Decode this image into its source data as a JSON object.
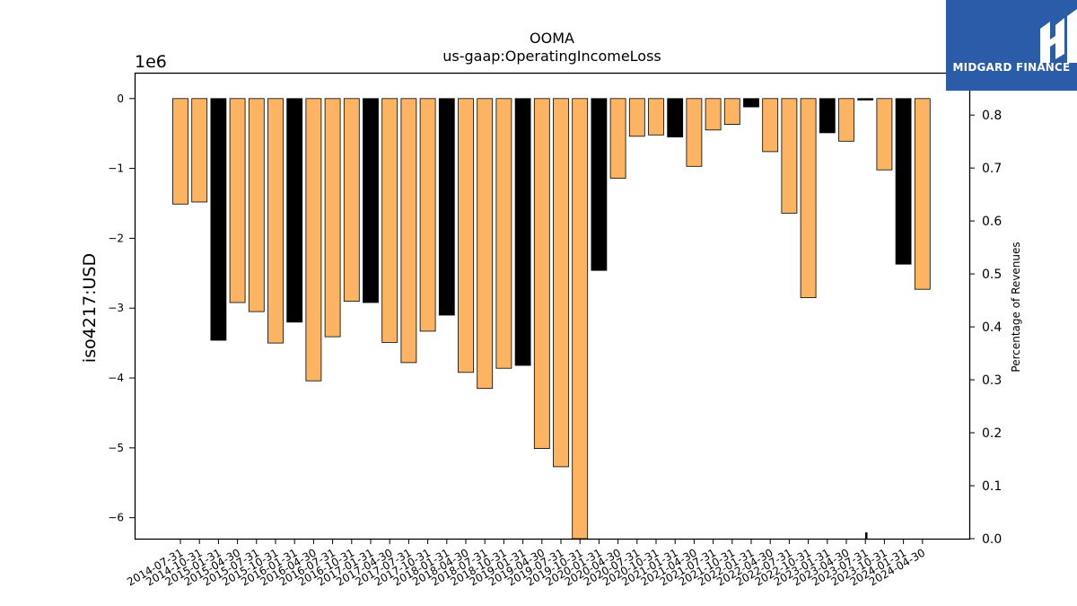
{
  "chart_data": {
    "type": "bar",
    "title": "OOMA",
    "subtitle": "us-gaap:OperatingIncomeLoss",
    "ylabel": "iso4217:USD",
    "y2label": "Percentage of Revenues",
    "offset_text": "1e6",
    "ylim": [
      -6.3,
      0.37
    ],
    "y2lim": [
      0.0,
      0.88
    ],
    "y_ticks": [
      0,
      -1,
      -2,
      -3,
      -4,
      -5,
      -6
    ],
    "y_tick_labels": [
      "0",
      "−1",
      "−2",
      "−3",
      "−4",
      "−5",
      "−6"
    ],
    "y2_ticks": [
      0.0,
      0.1,
      0.2,
      0.3,
      0.4,
      0.5,
      0.6,
      0.7,
      0.8
    ],
    "y2_tick_labels": [
      "0.0",
      "0.1",
      "0.2",
      "0.3",
      "0.4",
      "0.5",
      "0.6",
      "0.7",
      "0.8"
    ],
    "categories": [
      "2014-07-31",
      "2014-10-31",
      "2015-01-31",
      "2015-04-30",
      "2015-07-31",
      "2015-10-31",
      "2016-01-31",
      "2016-04-30",
      "2016-07-31",
      "2016-10-31",
      "2017-01-31",
      "2017-04-30",
      "2017-07-31",
      "2017-10-31",
      "2018-01-31",
      "2018-04-30",
      "2018-07-31",
      "2018-10-31",
      "2019-01-31",
      "2019-04-30",
      "2019-07-31",
      "2019-10-31",
      "2020-01-31",
      "2020-04-30",
      "2020-07-31",
      "2020-10-31",
      "2021-01-31",
      "2021-04-30",
      "2021-07-31",
      "2021-10-31",
      "2022-01-31",
      "2022-04-30",
      "2022-07-31",
      "2022-10-31",
      "2023-01-31",
      "2023-04-30",
      "2023-07-31",
      "2023-10-31",
      "2024-01-31",
      "2024-04-30"
    ],
    "values": [
      -1.51,
      -1.48,
      -3.46,
      -2.92,
      -3.05,
      -3.5,
      -3.2,
      -4.04,
      -3.41,
      -2.9,
      -2.92,
      -3.49,
      -3.78,
      -3.33,
      -3.1,
      -3.92,
      -4.15,
      -3.86,
      -3.82,
      -5.01,
      -5.27,
      -6.3,
      -2.46,
      -1.14,
      -0.54,
      -0.52,
      -0.55,
      -0.97,
      -0.45,
      -0.37,
      -0.12,
      -0.76,
      -1.64,
      -2.85,
      -0.49,
      -0.61,
      -0.02,
      -1.02,
      -2.37,
      -2.73
    ],
    "colors": [
      "#fdb462",
      "#fdb462",
      "#000000",
      "#fdb462",
      "#fdb462",
      "#fdb462",
      "#000000",
      "#fdb462",
      "#fdb462",
      "#fdb462",
      "#000000",
      "#fdb462",
      "#fdb462",
      "#fdb462",
      "#000000",
      "#fdb462",
      "#fdb462",
      "#fdb462",
      "#000000",
      "#fdb462",
      "#fdb462",
      "#fdb462",
      "#000000",
      "#fdb462",
      "#fdb462",
      "#fdb462",
      "#000000",
      "#fdb462",
      "#fdb462",
      "#fdb462",
      "#000000",
      "#fdb462",
      "#fdb462",
      "#fdb462",
      "#000000",
      "#fdb462",
      "#000000",
      "#fdb462",
      "#000000",
      "#fdb462"
    ],
    "tick_labels": [
      "2014-07-31",
      "2014-10-31",
      "2015-01-31",
      "2015-04-30",
      "2015-07-31",
      "2015-10-31",
      "2016-01-31",
      "2016-04-30",
      "2016-07-31",
      "2016-10-31",
      "2017-01-31",
      "2017-04-30",
      "2017-07-31",
      "2017-10-31",
      "2018-01-31",
      "2018-04-30",
      "2018-07-31",
      "2018-10-31",
      "2019-01-31",
      "2019-04-30",
      "2019-07-31",
      "2019-10-31",
      "2020-01-31",
      "2020-04-30",
      "2020-07-31",
      "2020-10-31",
      "2021-01-31",
      "2021-04-30",
      "2021-07-31",
      "2021-10-31",
      "2022-01-31",
      "2022-04-30",
      "2022-07-31",
      "2022-10-31",
      "2023-01-31",
      "2023-04-30",
      "2023-07-31",
      "2023-10-31",
      "2024-01-31",
      "2024-04-30"
    ],
    "grid": false,
    "legend": "none"
  },
  "logo": {
    "text": "MIDGARD FINANCE",
    "background": "#2a5caa",
    "icon": "midgard-logo-icon"
  }
}
